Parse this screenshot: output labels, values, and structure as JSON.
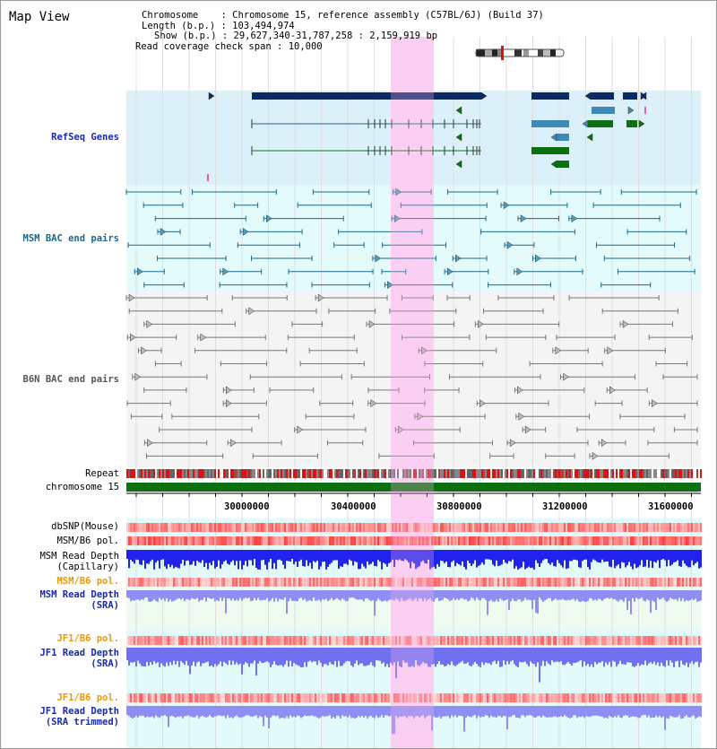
{
  "title": "Map View",
  "info": {
    "chromosome_key": "Chromosome",
    "chromosome_value": "Chromosome 15, reference assembly (C57BL/6J) (Build 37)",
    "length_key": "Length (b.p.)",
    "length_value": "103,494,974",
    "show_key": "Show (b.p.)",
    "show_value": "29,627,340-31,787,258 : 2,159,919 bp",
    "span_key": "Read coverage check span",
    "span_value": "10,000"
  },
  "tracks": {
    "refseq": "RefSeq Genes",
    "msm_bac": "MSM BAC end pairs",
    "b6n_bac": "B6N BAC end pairs",
    "repeat": "Repeat",
    "chromosome": "chromosome 15",
    "dbsnp": "dbSNP(Mouse)",
    "msm_b6_pol": "MSM/B6 pol.",
    "msm_depth_cap_1": "MSM Read Depth",
    "msm_depth_cap_2": "(Capillary)",
    "msm_b6_pol_sra": "MSM/B6 pol.",
    "msm_depth_sra_1": "MSM Read Depth",
    "msm_depth_sra_2": "(SRA)",
    "jf1_b6_pol": "JF1/B6 pol.",
    "jf1_depth_1": "JF1 Read Depth",
    "jf1_depth_2": "(SRA)",
    "jf1_b6_pol_trim": "JF1/B6 pol.",
    "jf1_depth_trim_1": "JF1 Read Depth",
    "jf1_depth_trim_2": "(SRA trimmed)"
  },
  "axis": {
    "ticks": [
      "30000000",
      "30400000",
      "30800000",
      "31200000",
      "31600000"
    ]
  },
  "colors": {
    "refseq_bg": "#dcf0fa",
    "msm_bg": "#e4fbfb",
    "b6n_bg": "#f4f4f4",
    "highlight": "#fbd8f4",
    "navy": "#0d2a62",
    "teal": "#3e8ab6",
    "green": "#0c7010",
    "msm_line": "#1c6a8c",
    "gray_line": "#777777",
    "depth_dark": "#2222ee",
    "depth_light": "#8e8ef4",
    "label_blue": "#1a28b0",
    "label_orange": "#ee9900"
  }
}
